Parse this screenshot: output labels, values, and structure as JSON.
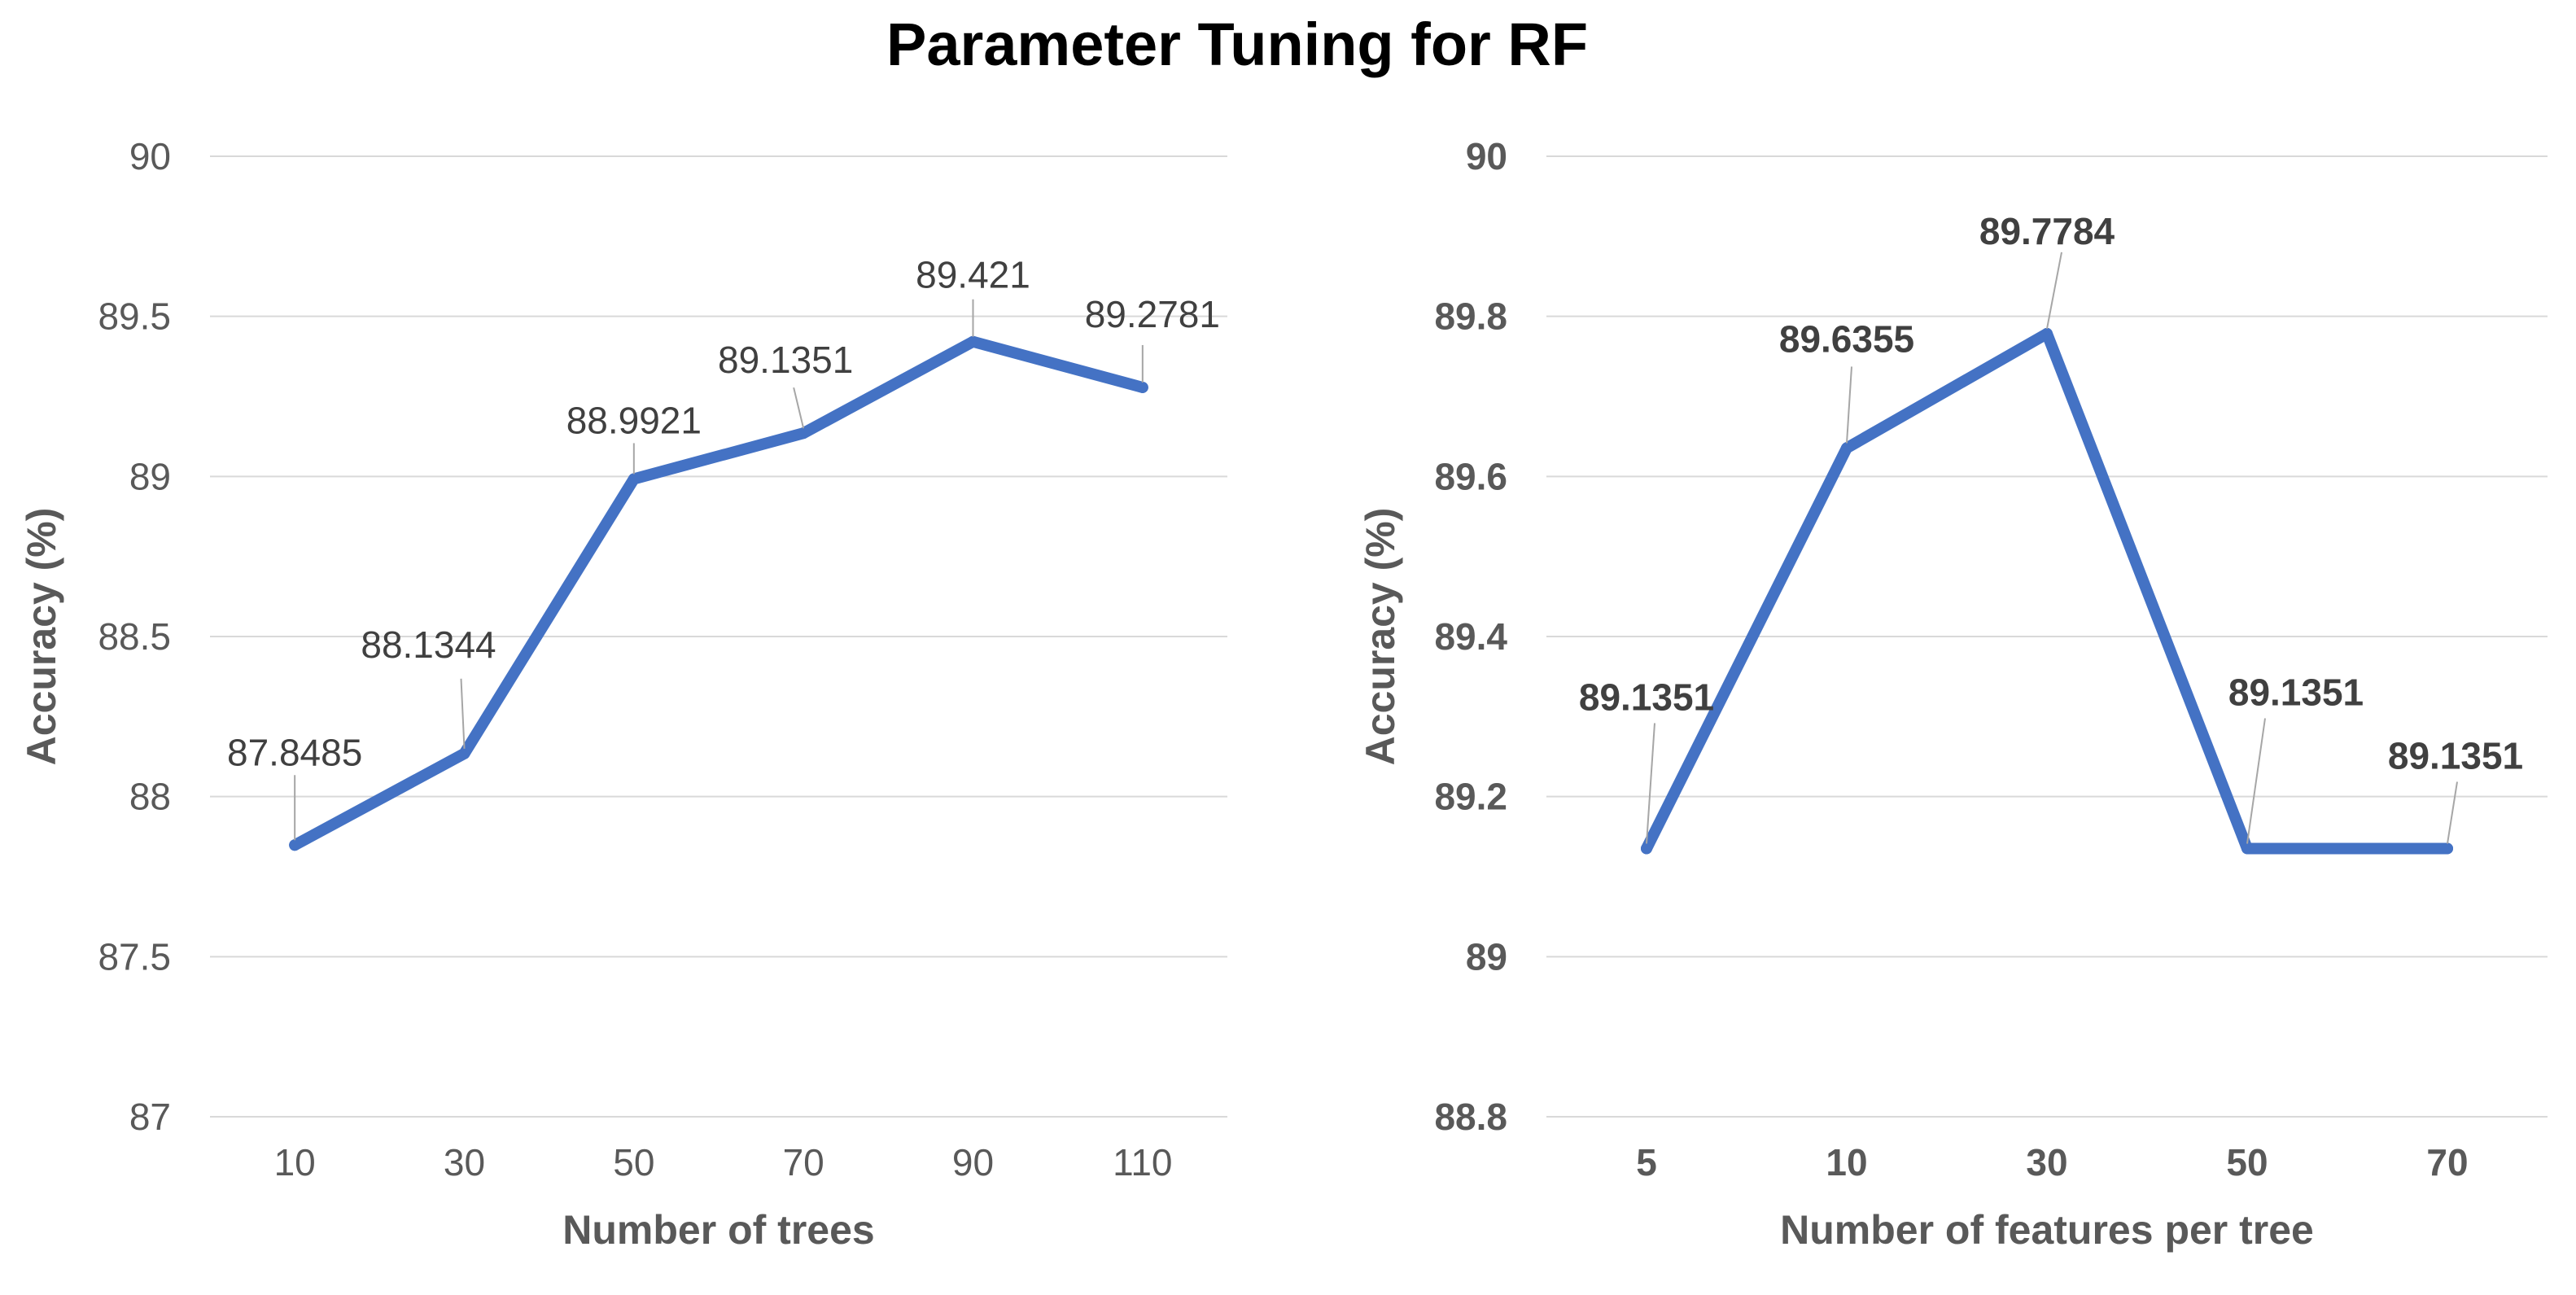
{
  "title": "Parameter Tuning for RF",
  "colors": {
    "series": "#4472c4",
    "grid": "#d9d9d9",
    "axis_text": "#595959",
    "label_text": "#404040"
  },
  "chart_data": [
    {
      "type": "line",
      "title": "Parameter Tuning for RF",
      "xlabel": "Number of trees",
      "ylabel": "Accuracy (%)",
      "ylim": [
        87,
        90
      ],
      "yticks": [
        "87",
        "87.5",
        "88",
        "88.5",
        "89",
        "89.5",
        "90"
      ],
      "categories": [
        "10",
        "30",
        "50",
        "70",
        "90",
        "110"
      ],
      "series": [
        {
          "name": "Accuracy",
          "values": [
            87.8485,
            88.1344,
            88.9921,
            89.1351,
            89.421,
            89.2781
          ]
        }
      ],
      "data_labels": [
        "87.8485",
        "88.1344",
        "88.9921",
        "89.1351",
        "89.421",
        "89.2781"
      ],
      "bold_text": false
    },
    {
      "type": "line",
      "title": "Parameter Tuning for RF",
      "xlabel": "Number of features per tree",
      "ylabel": "Accuracy (%)",
      "ylim": [
        88.8,
        90
      ],
      "yticks": [
        "88.8",
        "89",
        "89.2",
        "89.4",
        "89.6",
        "89.8",
        "90"
      ],
      "categories": [
        "5",
        "10",
        "30",
        "50",
        "70"
      ],
      "series": [
        {
          "name": "Accuracy",
          "values": [
            89.1351,
            89.6355,
            89.7784,
            89.1351,
            89.1351
          ]
        }
      ],
      "data_labels": [
        "89.1351",
        "89.6355",
        "89.7784",
        "89.1351",
        "89.1351"
      ],
      "bold_text": true
    }
  ]
}
